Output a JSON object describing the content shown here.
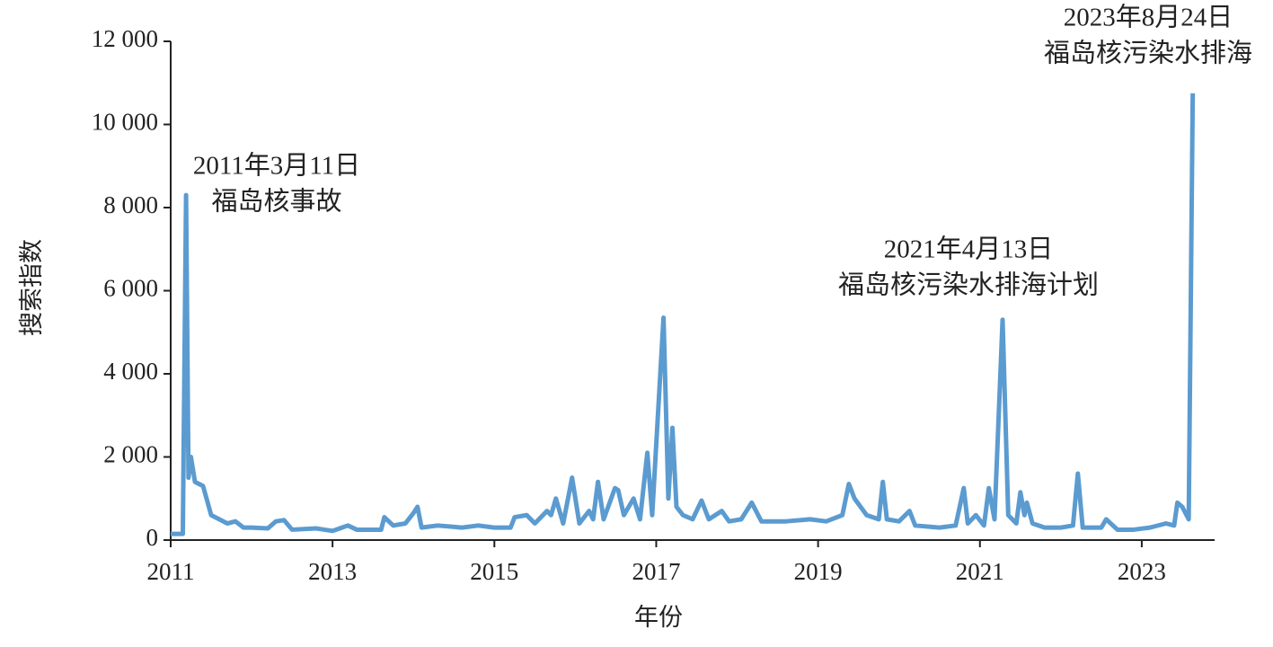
{
  "chart_data": {
    "type": "line",
    "x_label": "年份",
    "y_label": "搜索指数",
    "xlim": [
      2011,
      2023.9
    ],
    "ylim": [
      0,
      12000
    ],
    "xticks": [
      2011,
      2013,
      2015,
      2017,
      2019,
      2021,
      2023
    ],
    "yticks": [
      0,
      {
        "value": 2000,
        "label": "2 000"
      },
      {
        "value": 4000,
        "label": "4 000"
      },
      {
        "value": 6000,
        "label": "6 000"
      },
      {
        "value": 8000,
        "label": "8 000"
      },
      {
        "value": 10000,
        "label": "10 000"
      },
      {
        "value": 12000,
        "label": "12 000"
      }
    ],
    "annotations": [
      {
        "lines": [
          "2011年3月11日",
          "福岛核事故"
        ]
      },
      {
        "lines": [
          "2021年4月13日",
          "福岛核污染水排海计划"
        ]
      },
      {
        "lines": [
          "2023年8月24日",
          "福岛核污染水排海"
        ]
      }
    ],
    "series": [
      {
        "name": "搜索指数",
        "color": "#5b9bd0",
        "x": [
          2011.0,
          2011.15,
          2011.19,
          2011.22,
          2011.25,
          2011.3,
          2011.4,
          2011.5,
          2011.7,
          2011.8,
          2011.9,
          2012.0,
          2012.2,
          2012.3,
          2012.4,
          2012.5,
          2012.8,
          2013.0,
          2013.19,
          2013.3,
          2013.6,
          2013.64,
          2013.75,
          2013.9,
          2014.0,
          2014.05,
          2014.1,
          2014.3,
          2014.6,
          2014.8,
          2015.0,
          2015.2,
          2015.25,
          2015.4,
          2015.5,
          2015.65,
          2015.7,
          2015.76,
          2015.85,
          2015.96,
          2016.05,
          2016.17,
          2016.22,
          2016.28,
          2016.35,
          2016.49,
          2016.53,
          2016.6,
          2016.72,
          2016.8,
          2016.89,
          2016.95,
          2017.09,
          2017.15,
          2017.2,
          2017.25,
          2017.33,
          2017.45,
          2017.56,
          2017.65,
          2017.81,
          2017.9,
          2018.05,
          2018.18,
          2018.3,
          2018.6,
          2018.9,
          2019.1,
          2019.3,
          2019.38,
          2019.45,
          2019.6,
          2019.75,
          2019.8,
          2019.85,
          2020.0,
          2020.13,
          2020.2,
          2020.5,
          2020.7,
          2020.8,
          2020.85,
          2020.95,
          2021.05,
          2021.11,
          2021.18,
          2021.28,
          2021.35,
          2021.45,
          2021.5,
          2021.55,
          2021.58,
          2021.65,
          2021.8,
          2022.0,
          2022.15,
          2022.21,
          2022.27,
          2022.5,
          2022.56,
          2022.7,
          2022.9,
          2023.1,
          2023.3,
          2023.4,
          2023.44,
          2023.5,
          2023.58,
          2023.63
        ],
        "values": [
          150,
          150,
          8300,
          1500,
          2000,
          1400,
          1300,
          600,
          400,
          450,
          300,
          300,
          280,
          450,
          480,
          250,
          280,
          220,
          350,
          250,
          250,
          550,
          350,
          400,
          650,
          800,
          300,
          350,
          300,
          350,
          300,
          300,
          550,
          600,
          400,
          700,
          600,
          1000,
          400,
          1500,
          400,
          700,
          500,
          1400,
          500,
          1250,
          1200,
          600,
          1000,
          500,
          2100,
          600,
          5350,
          1000,
          2700,
          800,
          600,
          500,
          950,
          500,
          700,
          450,
          500,
          900,
          450,
          450,
          500,
          450,
          600,
          1350,
          1000,
          600,
          500,
          1400,
          500,
          450,
          700,
          350,
          300,
          350,
          1250,
          400,
          600,
          350,
          1250,
          500,
          5300,
          600,
          400,
          1150,
          600,
          900,
          400,
          300,
          300,
          350,
          1600,
          300,
          300,
          500,
          250,
          250,
          300,
          400,
          350,
          900,
          800,
          500,
          10750
        ]
      }
    ]
  }
}
